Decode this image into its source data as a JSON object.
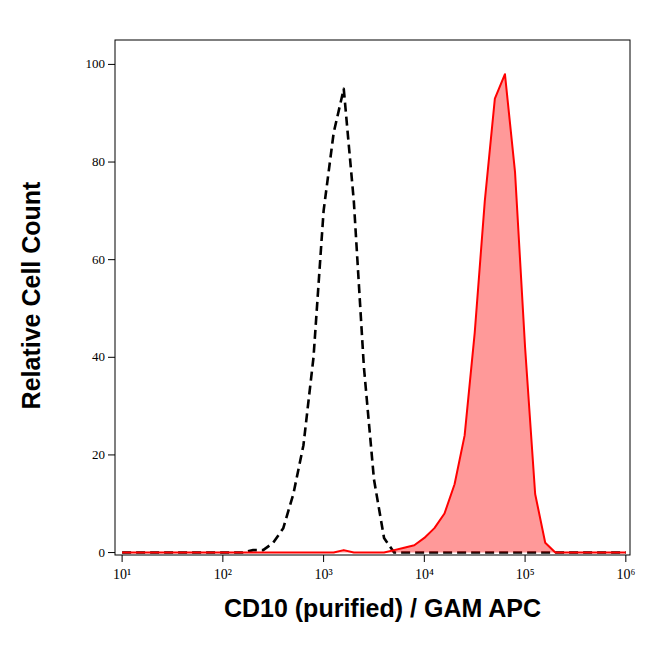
{
  "chart_data": {
    "type": "line",
    "x_label": "CD10 (purified) / GAM APC",
    "y_label": "Relative Cell Count",
    "log": "x",
    "grid": false,
    "x": [
      10,
      100,
      126,
      158,
      200,
      251,
      316,
      398,
      501,
      631,
      794,
      1000,
      1259,
      1585,
      1995,
      2512,
      3162,
      3981,
      5012,
      6310,
      7943,
      10000,
      12589,
      15849,
      19953,
      25119,
      31623,
      39811,
      50119,
      63096,
      79433,
      100000,
      125893,
      158489,
      199526,
      251189,
      1000000
    ],
    "series": [
      {
        "color": "#000000",
        "line_style": "dashed",
        "type": "line",
        "values": [
          0,
          0,
          0,
          0,
          0.5,
          0.5,
          2,
          5,
          12,
          22,
          40,
          70,
          86,
          95,
          72,
          38,
          15,
          3,
          0,
          0,
          0,
          0,
          0,
          0,
          0,
          0,
          0,
          0,
          0,
          0,
          0,
          0,
          0,
          0,
          0,
          0,
          0
        ]
      },
      {
        "color": "#ff0000",
        "line_style": "solid",
        "type": "area",
        "values": [
          0,
          0,
          0,
          0,
          0,
          0,
          0,
          0,
          0,
          0,
          0,
          0,
          0,
          0.5,
          0,
          0,
          0,
          0,
          0.5,
          1,
          1.5,
          3,
          5,
          8,
          14,
          24,
          45,
          72,
          93,
          98,
          78,
          42,
          12,
          2,
          0,
          0,
          0
        ]
      }
    ],
    "xlim": [
      8.5,
      1100000
    ],
    "xticks": [
      {
        "value": 10,
        "label": "10¹"
      },
      {
        "value": 100,
        "label": "10²"
      },
      {
        "value": 1000,
        "label": "10³"
      },
      {
        "value": 10000,
        "label": "10⁴"
      },
      {
        "value": 100000,
        "label": "10⁵"
      },
      {
        "value": 1000000,
        "label": "10⁶"
      }
    ],
    "ylim": [
      -0.5,
      105
    ],
    "yticks": [
      0,
      20,
      40,
      60,
      80,
      100
    ]
  }
}
